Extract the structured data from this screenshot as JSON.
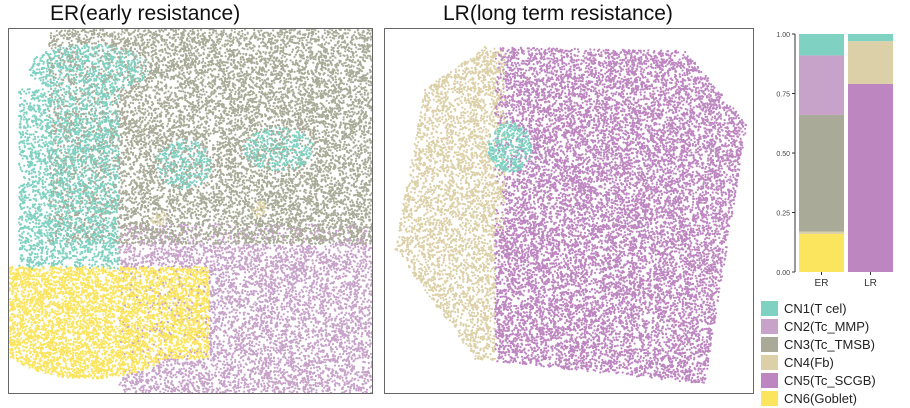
{
  "panels": {
    "er_title": "ER(early resistance)",
    "lr_title": "LR(long term resistance)"
  },
  "legend": [
    {
      "label": "CN1(T cel)",
      "color": "#7fd1c1"
    },
    {
      "label": "CN2(Tc_MMP)",
      "color": "#c7a2c9"
    },
    {
      "label": "CN3(Tc_TMSB)",
      "color": "#a9ab98"
    },
    {
      "label": "CN4(Fb)",
      "color": "#dcd0a8"
    },
    {
      "label": "CN5(Tc_SCGB)",
      "color": "#bd86c0"
    },
    {
      "label": "CN6(Goblet)",
      "color": "#fbe45e"
    }
  ],
  "chart_data": [
    {
      "type": "scatter",
      "title": "ER(early resistance)",
      "description_regions": [
        {
          "series": "CN3(Tc_TMSB)",
          "area": "upper half"
        },
        {
          "series": "CN1(T cel)",
          "area": "upper-left and center rings"
        },
        {
          "series": "CN2(Tc_MMP)",
          "area": "lower-right"
        },
        {
          "series": "CN6(Goblet)",
          "area": "lower-left"
        },
        {
          "series": "CN4(Fb)",
          "area": "sparse small clusters"
        }
      ]
    },
    {
      "type": "scatter",
      "title": "LR(long term resistance)",
      "description_regions": [
        {
          "series": "CN5(Tc_SCGB)",
          "area": "most of the tissue"
        },
        {
          "series": "CN4(Fb)",
          "area": "left edge"
        },
        {
          "series": "CN1(T cel)",
          "area": "small cluster upper-left"
        }
      ]
    },
    {
      "type": "bar",
      "stacked": true,
      "categories": [
        "ER",
        "LR"
      ],
      "ylim": [
        0,
        1
      ],
      "yticks": [
        "0.00",
        "0.25",
        "0.50",
        "0.75",
        "1.00"
      ],
      "series": [
        {
          "name": "CN1(T cel)",
          "values": [
            0.09,
            0.03
          ]
        },
        {
          "name": "CN2(Tc_MMP)",
          "values": [
            0.25,
            0.0
          ]
        },
        {
          "name": "CN3(Tc_TMSB)",
          "values": [
            0.49,
            0.0
          ]
        },
        {
          "name": "CN4(Fb)",
          "values": [
            0.01,
            0.18
          ]
        },
        {
          "name": "CN5(Tc_SCGB)",
          "values": [
            0.0,
            0.79
          ]
        },
        {
          "name": "CN6(Goblet)",
          "values": [
            0.16,
            0.0
          ]
        }
      ]
    }
  ]
}
